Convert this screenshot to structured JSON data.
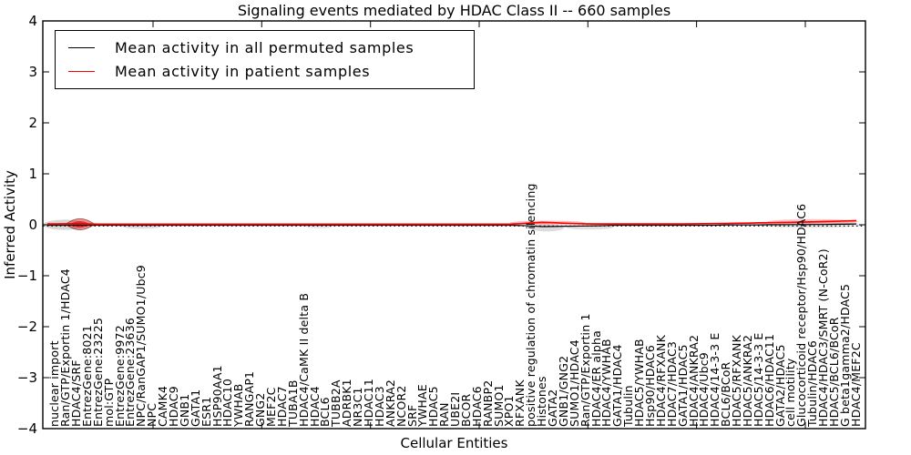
{
  "axes": {
    "ytick_labels": [
      "4",
      "3",
      "2",
      "1",
      "0",
      "−1",
      "−2",
      "−3",
      "−4"
    ]
  },
  "chart_data": {
    "type": "line",
    "title": "Signaling events mediated by HDAC Class II -- 660 samples",
    "xlabel": "Cellular Entities",
    "ylabel": "Inferred Activity",
    "ylim": [
      -4,
      4
    ],
    "yticks": [
      4,
      3,
      2,
      1,
      0,
      -1,
      -2,
      -3,
      -4
    ],
    "grid": false,
    "legend_position": "upper left",
    "zero_reference_line": {
      "y": 0,
      "style": "dotted",
      "color": "#000000"
    },
    "x_tick_interval_categories": 10,
    "categories": [
      "nuclear import",
      "Ran/GTP/Exportin 1/HDAC4",
      "HDAC4/SRF",
      "EntrezGene:8021",
      "EntrezGene:23225",
      "mol:GTP",
      "EntrezGene:9972",
      "EntrezGene:23636",
      "NPC/RanGAP1/SUMO1/Ubc9",
      "NPC",
      "CAMK4",
      "HDAC9",
      "GNB1",
      "GATA1",
      "ESR1",
      "HSP90AA1",
      "HDAC10",
      "YWHAB",
      "RANGAP1",
      "GNG2",
      "MEF2C",
      "HDAC7",
      "TUBA1B",
      "HDAC4/CaMK II delta B",
      "HDAC4",
      "BCL6",
      "TUBB2A",
      "ADRBK1",
      "NR3C1",
      "HDAC11",
      "HDAC3",
      "ANKRA2",
      "NCOR2",
      "SRF",
      "YWHAE",
      "HDAC5",
      "RAN",
      "UBE2I",
      "BCOR",
      "HDAC6",
      "RANBP2",
      "SUMO1",
      "XPO1",
      "RFXANK",
      "positive regulation of chromatin silencing",
      "Histones",
      "GATA2",
      "GNB1/GNG2",
      "SUMO1/HDAC4",
      "Ran/GTP/Exportin 1",
      "HDAC4/ER alpha",
      "HDAC4/YWHAB",
      "GATA1/HDAC4",
      "Tubulin",
      "HDAC5/YWHAB",
      "Hsp90/HDAC6",
      "HDAC4/RFXANK",
      "HDAC7/HDAC3",
      "GATA1/HDAC5",
      "HDAC4/ANKRA2",
      "HDAC4/Ubc9",
      "HDAC4/14-3-3 E",
      "BCL6/BCoR",
      "HDAC5/RFXANK",
      "HDAC5/ANKRA2",
      "HDAC5/14-3-3 E",
      "HDAC6/HDAC11",
      "GATA2/HDAC5",
      "cell motility",
      "Glucocorticoid receptor/Hsp90/HDAC6",
      "Tubulin/HDAC6",
      "HDAC4/HDAC3/SMRT (N-CoR2)",
      "HDAC5/BCL6/BCoR",
      "G beta1gamma2/HDAC5",
      "HDAC4/MEF2C"
    ],
    "series": [
      {
        "name": "Mean activity in all permuted samples",
        "color": "#000000",
        "values": [
          0,
          0,
          0,
          0,
          0,
          0,
          0,
          0,
          0,
          0,
          0,
          0,
          0,
          0,
          0,
          0,
          0,
          0,
          0,
          0,
          0,
          0,
          0,
          0,
          0,
          0,
          0,
          0,
          0,
          0,
          0,
          0,
          0,
          0,
          0,
          0,
          0,
          0,
          0,
          0,
          0,
          0,
          0,
          -0.005,
          -0.015,
          -0.027,
          -0.025,
          -0.02,
          -0.018,
          -0.015,
          -0.01,
          -0.005,
          0,
          0,
          0,
          0,
          0,
          0,
          0,
          0,
          0,
          0,
          0.005,
          0.005,
          0.008,
          0.008,
          0.01,
          0.01,
          0.012,
          0.012,
          0.015,
          0.015,
          0.018,
          0.02,
          0.025
        ]
      },
      {
        "name": "Mean activity in patient samples",
        "color": "#ff0000",
        "values": [
          0.005,
          0.008,
          0.01,
          0.005,
          0,
          0,
          0,
          0,
          0,
          0,
          0,
          0,
          0,
          0,
          0,
          0,
          0,
          0,
          0,
          0,
          0,
          0,
          0,
          0,
          0,
          0,
          0,
          0,
          0,
          0,
          0,
          0,
          0,
          0,
          0,
          0,
          0,
          0,
          0,
          0,
          0,
          0,
          0,
          0.01,
          0.025,
          0.035,
          0.03,
          0.02,
          0.012,
          0.008,
          0.006,
          0.005,
          0.005,
          0.005,
          0.005,
          0.005,
          0.005,
          0.005,
          0.006,
          0.008,
          0.01,
          0.012,
          0.015,
          0.018,
          0.022,
          0.026,
          0.03,
          0.034,
          0.038,
          0.042,
          0.047,
          0.052,
          0.058,
          0.064,
          0.07
        ]
      }
    ],
    "uncertainty_shading": [
      {
        "kind": "gray-band",
        "center_index": 0.9,
        "half_width_categories": 2.0,
        "half_height": 0.1,
        "y_offset": 0.0,
        "opacity": 0.16
      },
      {
        "kind": "gray-band",
        "center_index": 8.0,
        "half_width_categories": 1.8,
        "half_height": 0.05,
        "y_offset": -0.03,
        "opacity": 0.12
      },
      {
        "kind": "gray-band",
        "center_index": 24.4,
        "half_width_categories": 1.2,
        "half_height": 0.035,
        "y_offset": -0.04,
        "opacity": 0.08
      },
      {
        "kind": "gray-band",
        "center_index": 45.4,
        "half_width_categories": 1.6,
        "half_height": 0.07,
        "y_offset": -0.06,
        "opacity": 0.14
      },
      {
        "kind": "gray-band",
        "center_index": 49.4,
        "half_width_categories": 2.2,
        "half_height": 0.045,
        "y_offset": -0.05,
        "opacity": 0.12
      },
      {
        "kind": "gray-band",
        "center_index": 69.8,
        "half_width_categories": 4.8,
        "half_height": 0.06,
        "y_offset": 0.0,
        "opacity": 0.1
      },
      {
        "kind": "red-band",
        "center_index": 45.5,
        "half_width_categories": 3.5,
        "half_height": 0.04,
        "y_offset": 0.04,
        "opacity": 0.3
      },
      {
        "kind": "red-band",
        "center_index": 70.0,
        "half_width_categories": 4.2,
        "half_height": 0.05,
        "y_offset": 0.06,
        "opacity": 0.25
      },
      {
        "kind": "red-violin",
        "center_index": 2.3,
        "half_width_categories": 1.35,
        "half_height": 0.11,
        "y_offset": 0.01,
        "opacity": 0.5
      }
    ]
  }
}
